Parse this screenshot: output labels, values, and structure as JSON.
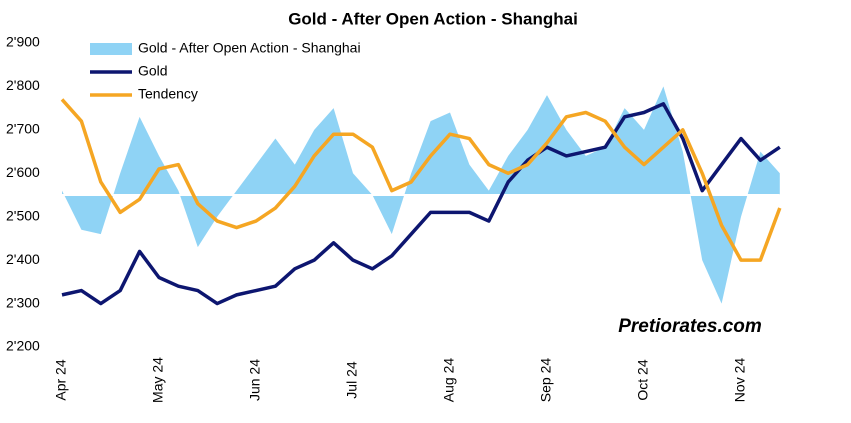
{
  "chart_data": {
    "type": "line",
    "title": "Gold - After Open Action - Shanghai",
    "watermark": "Pretiorates.com",
    "categories": [
      "Apr 24",
      null,
      null,
      null,
      null,
      "May 24",
      null,
      null,
      null,
      null,
      "Jun 24",
      null,
      null,
      null,
      null,
      "Jul 24",
      null,
      null,
      null,
      null,
      "Aug 24",
      null,
      null,
      null,
      null,
      "Sep 24",
      null,
      null,
      null,
      null,
      "Oct 24",
      null,
      null,
      null,
      null,
      "Nov 24",
      null,
      null
    ],
    "ylim": [
      2200,
      2900
    ],
    "yticks": [
      {
        "value": 2200,
        "label": "2'200"
      },
      {
        "value": 2300,
        "label": "2'300"
      },
      {
        "value": 2400,
        "label": "2'400"
      },
      {
        "value": 2500,
        "label": "2'500"
      },
      {
        "value": 2600,
        "label": "2'600"
      },
      {
        "value": 2700,
        "label": "2'700"
      },
      {
        "value": 2800,
        "label": "2'800"
      },
      {
        "value": 2900,
        "label": "2'900"
      }
    ],
    "baseline": 2550,
    "legend": "top-left",
    "series": [
      {
        "name": "Gold - After Open Action - Shanghai",
        "kind": "area",
        "color": "#8fd3f5",
        "values": [
          2560,
          2470,
          2460,
          2600,
          2730,
          2640,
          2560,
          2430,
          2500,
          2560,
          2620,
          2680,
          2620,
          2700,
          2750,
          2600,
          2550,
          2460,
          2600,
          2720,
          2740,
          2620,
          2560,
          2640,
          2700,
          2780,
          2700,
          2640,
          2660,
          2750,
          2700,
          2800,
          2650,
          2400,
          2300,
          2500,
          2650,
          2600
        ]
      },
      {
        "name": "Gold",
        "kind": "line",
        "color": "#0d1670",
        "values": [
          2320,
          2330,
          2300,
          2330,
          2420,
          2360,
          2340,
          2330,
          2300,
          2320,
          2330,
          2340,
          2380,
          2400,
          2440,
          2400,
          2380,
          2410,
          2460,
          2510,
          2510,
          2510,
          2490,
          2580,
          2630,
          2660,
          2640,
          2650,
          2660,
          2730,
          2740,
          2760,
          2680,
          2560,
          2620,
          2680,
          2630,
          2660
        ]
      },
      {
        "name": "Tendency",
        "kind": "line",
        "color": "#f5a623",
        "values": [
          2770,
          2720,
          2580,
          2510,
          2540,
          2610,
          2620,
          2530,
          2490,
          2475,
          2490,
          2520,
          2570,
          2640,
          2690,
          2690,
          2660,
          2560,
          2580,
          2640,
          2690,
          2680,
          2620,
          2600,
          2620,
          2670,
          2730,
          2740,
          2720,
          2660,
          2620,
          2660,
          2700,
          2600,
          2480,
          2400,
          2400,
          2520
        ]
      }
    ]
  }
}
